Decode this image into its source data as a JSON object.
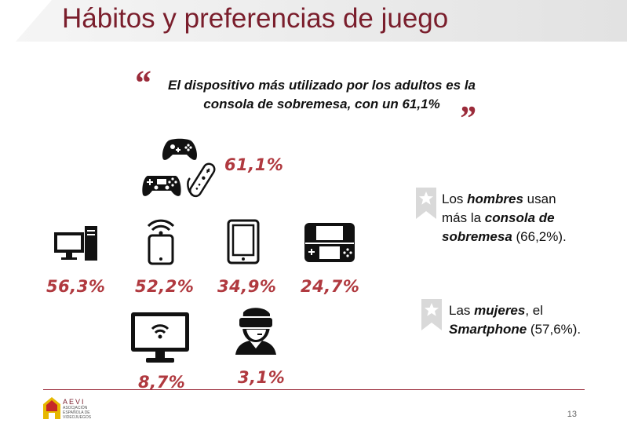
{
  "title": "Hábitos y preferencias de juego",
  "quote": {
    "line1": "El dispositivo más utilizado por los adultos es la",
    "line2": "consola de sobremesa, con un 61,1%",
    "open_mark": "“",
    "close_mark": "”"
  },
  "devices": {
    "consoles": {
      "pct": "61,1%",
      "icons": [
        "xbox-controller-icon",
        "playstation-controller-icon",
        "wii-controller-icon"
      ]
    },
    "computer": {
      "pct": "56,3%",
      "icon": "desktop-computer-icon"
    },
    "smartphone": {
      "pct": "52,2%",
      "icon": "smartphone-wifi-icon"
    },
    "tablet": {
      "pct": "34,9%",
      "icon": "tablet-icon"
    },
    "handheld": {
      "pct": "24,7%",
      "icon": "handheld-console-icon"
    },
    "smart_tv": {
      "pct": "8,7%",
      "icon": "smart-tv-icon"
    },
    "vr": {
      "pct": "3,1%",
      "icon": "vr-headset-icon"
    }
  },
  "notes": {
    "men": {
      "pre": "Los ",
      "em1": "hombres",
      "mid1": " usan",
      "mid2": "más la ",
      "em2": "consola de",
      "em3": "sobremesa",
      "post": " (66,2%)."
    },
    "women": {
      "pre": "Las ",
      "em1": "mujeres",
      "mid1": ", el",
      "em2": "Smartphone",
      "post": " (57,6%)."
    }
  },
  "footer": {
    "logo_text": "AEVI",
    "logo_sub": "ASOCIACIÓN ESPAÑOLA DE VIDEOJUEGOS",
    "page_number": "13"
  },
  "colors": {
    "accent": "#7a1e2c",
    "pct": "#b0393f",
    "icon": "#111111",
    "ribbon": "#d9d9d9"
  }
}
